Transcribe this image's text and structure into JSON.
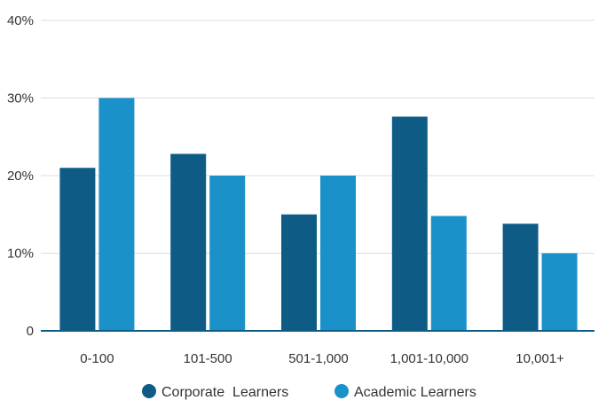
{
  "chart_data": {
    "type": "bar",
    "categories": [
      "0-100",
      "101-500",
      "501-1,000",
      "1,001-10,000",
      "10,001+"
    ],
    "series": [
      {
        "name": "Corporate  Learners",
        "color": "#0e5c86",
        "values": [
          21,
          22.8,
          15,
          27.6,
          13.8
        ]
      },
      {
        "name": "Academic Learners",
        "color": "#1a91c9",
        "values": [
          30,
          20,
          20,
          14.8,
          10
        ]
      }
    ],
    "yticks": [
      {
        "value": 0,
        "label": "0"
      },
      {
        "value": 10,
        "label": "10%"
      },
      {
        "value": 20,
        "label": "20%"
      },
      {
        "value": 30,
        "label": "30%"
      },
      {
        "value": 40,
        "label": "40%"
      }
    ],
    "ylim": [
      0,
      40
    ],
    "grid": true,
    "legend_position": "bottom-center"
  }
}
